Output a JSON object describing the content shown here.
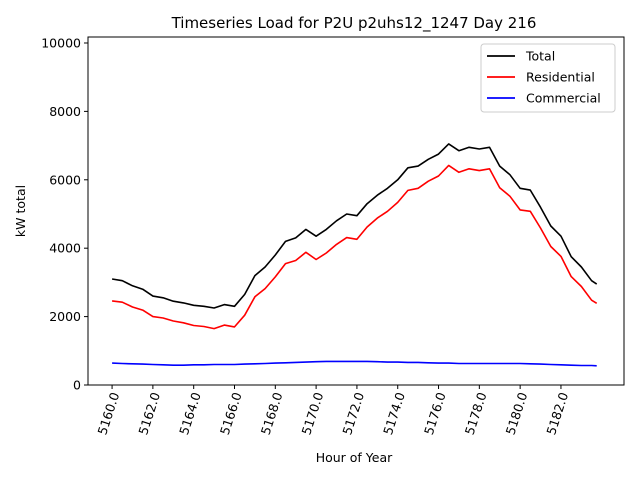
{
  "chart_data": {
    "type": "line",
    "title": "Timeseries Load for P2U p2uhs12_1247  Day 216",
    "xlabel": "Hour of Year",
    "ylabel": "kW total",
    "xlim": [
      5158.82,
      5185.09
    ],
    "ylim": [
      0,
      10175
    ],
    "xticks": [
      5160,
      5162,
      5164,
      5166,
      5168,
      5170,
      5172,
      5174,
      5176,
      5178,
      5180,
      5182
    ],
    "xtick_labels": [
      "5160.0",
      "5162.0",
      "5164.0",
      "5166.0",
      "5168.0",
      "5170.0",
      "5172.0",
      "5174.0",
      "5176.0",
      "5178.0",
      "5180.0",
      "5182.0"
    ],
    "yticks": [
      0,
      2000,
      4000,
      6000,
      8000,
      10000
    ],
    "ytick_labels": [
      "0",
      "2000",
      "4000",
      "6000",
      "8000",
      "10000"
    ],
    "grid": false,
    "legend_position": "top-right",
    "x": [
      5160,
      5160.5,
      5161,
      5161.5,
      5162,
      5162.5,
      5163,
      5163.5,
      5164,
      5164.5,
      5165,
      5165.5,
      5166,
      5166.5,
      5167,
      5167.5,
      5168,
      5168.5,
      5169,
      5169.5,
      5170,
      5170.5,
      5171,
      5171.5,
      5172,
      5172.5,
      5173,
      5173.5,
      5174,
      5174.5,
      5175,
      5175.5,
      5176,
      5176.5,
      5177,
      5177.5,
      5178,
      5178.5,
      5179,
      5179.5,
      5180,
      5180.5,
      5181,
      5181.5,
      5182,
      5182.5,
      5183,
      5183.5,
      5183.75
    ],
    "series": [
      {
        "name": "Total",
        "color": "#000000",
        "values": [
          3100,
          3050,
          2900,
          2800,
          2600,
          2550,
          2450,
          2400,
          2330,
          2300,
          2250,
          2350,
          2300,
          2650,
          3200,
          3450,
          3800,
          4200,
          4300,
          4550,
          4350,
          4550,
          4800,
          5000,
          4950,
          5300,
          5550,
          5750,
          6000,
          6350,
          6400,
          6600,
          6750,
          7050,
          6850,
          6950,
          6900,
          6950,
          6400,
          6150,
          5750,
          5700,
          5200,
          4650,
          4350,
          3750,
          3450,
          3050,
          2950
        ]
      },
      {
        "name": "Residential",
        "color": "#ff0000",
        "values": [
          2460,
          2420,
          2280,
          2190,
          2000,
          1960,
          1870,
          1820,
          1740,
          1710,
          1650,
          1750,
          1700,
          2040,
          2580,
          2820,
          3160,
          3550,
          3640,
          3880,
          3670,
          3860,
          4110,
          4310,
          4260,
          4620,
          4880,
          5080,
          5340,
          5690,
          5750,
          5960,
          6110,
          6420,
          6220,
          6320,
          6270,
          6320,
          5770,
          5520,
          5120,
          5080,
          4590,
          4050,
          3760,
          3170,
          2880,
          2480,
          2390
        ]
      },
      {
        "name": "Commercial",
        "color": "#0000ff",
        "values": [
          640,
          630,
          620,
          610,
          600,
          590,
          580,
          580,
          590,
          590,
          600,
          600,
          600,
          610,
          620,
          630,
          640,
          650,
          660,
          670,
          680,
          690,
          690,
          690,
          690,
          690,
          680,
          670,
          670,
          660,
          660,
          650,
          640,
          640,
          630,
          630,
          630,
          630,
          630,
          630,
          630,
          620,
          610,
          600,
          590,
          580,
          570,
          570,
          560
        ]
      }
    ]
  }
}
